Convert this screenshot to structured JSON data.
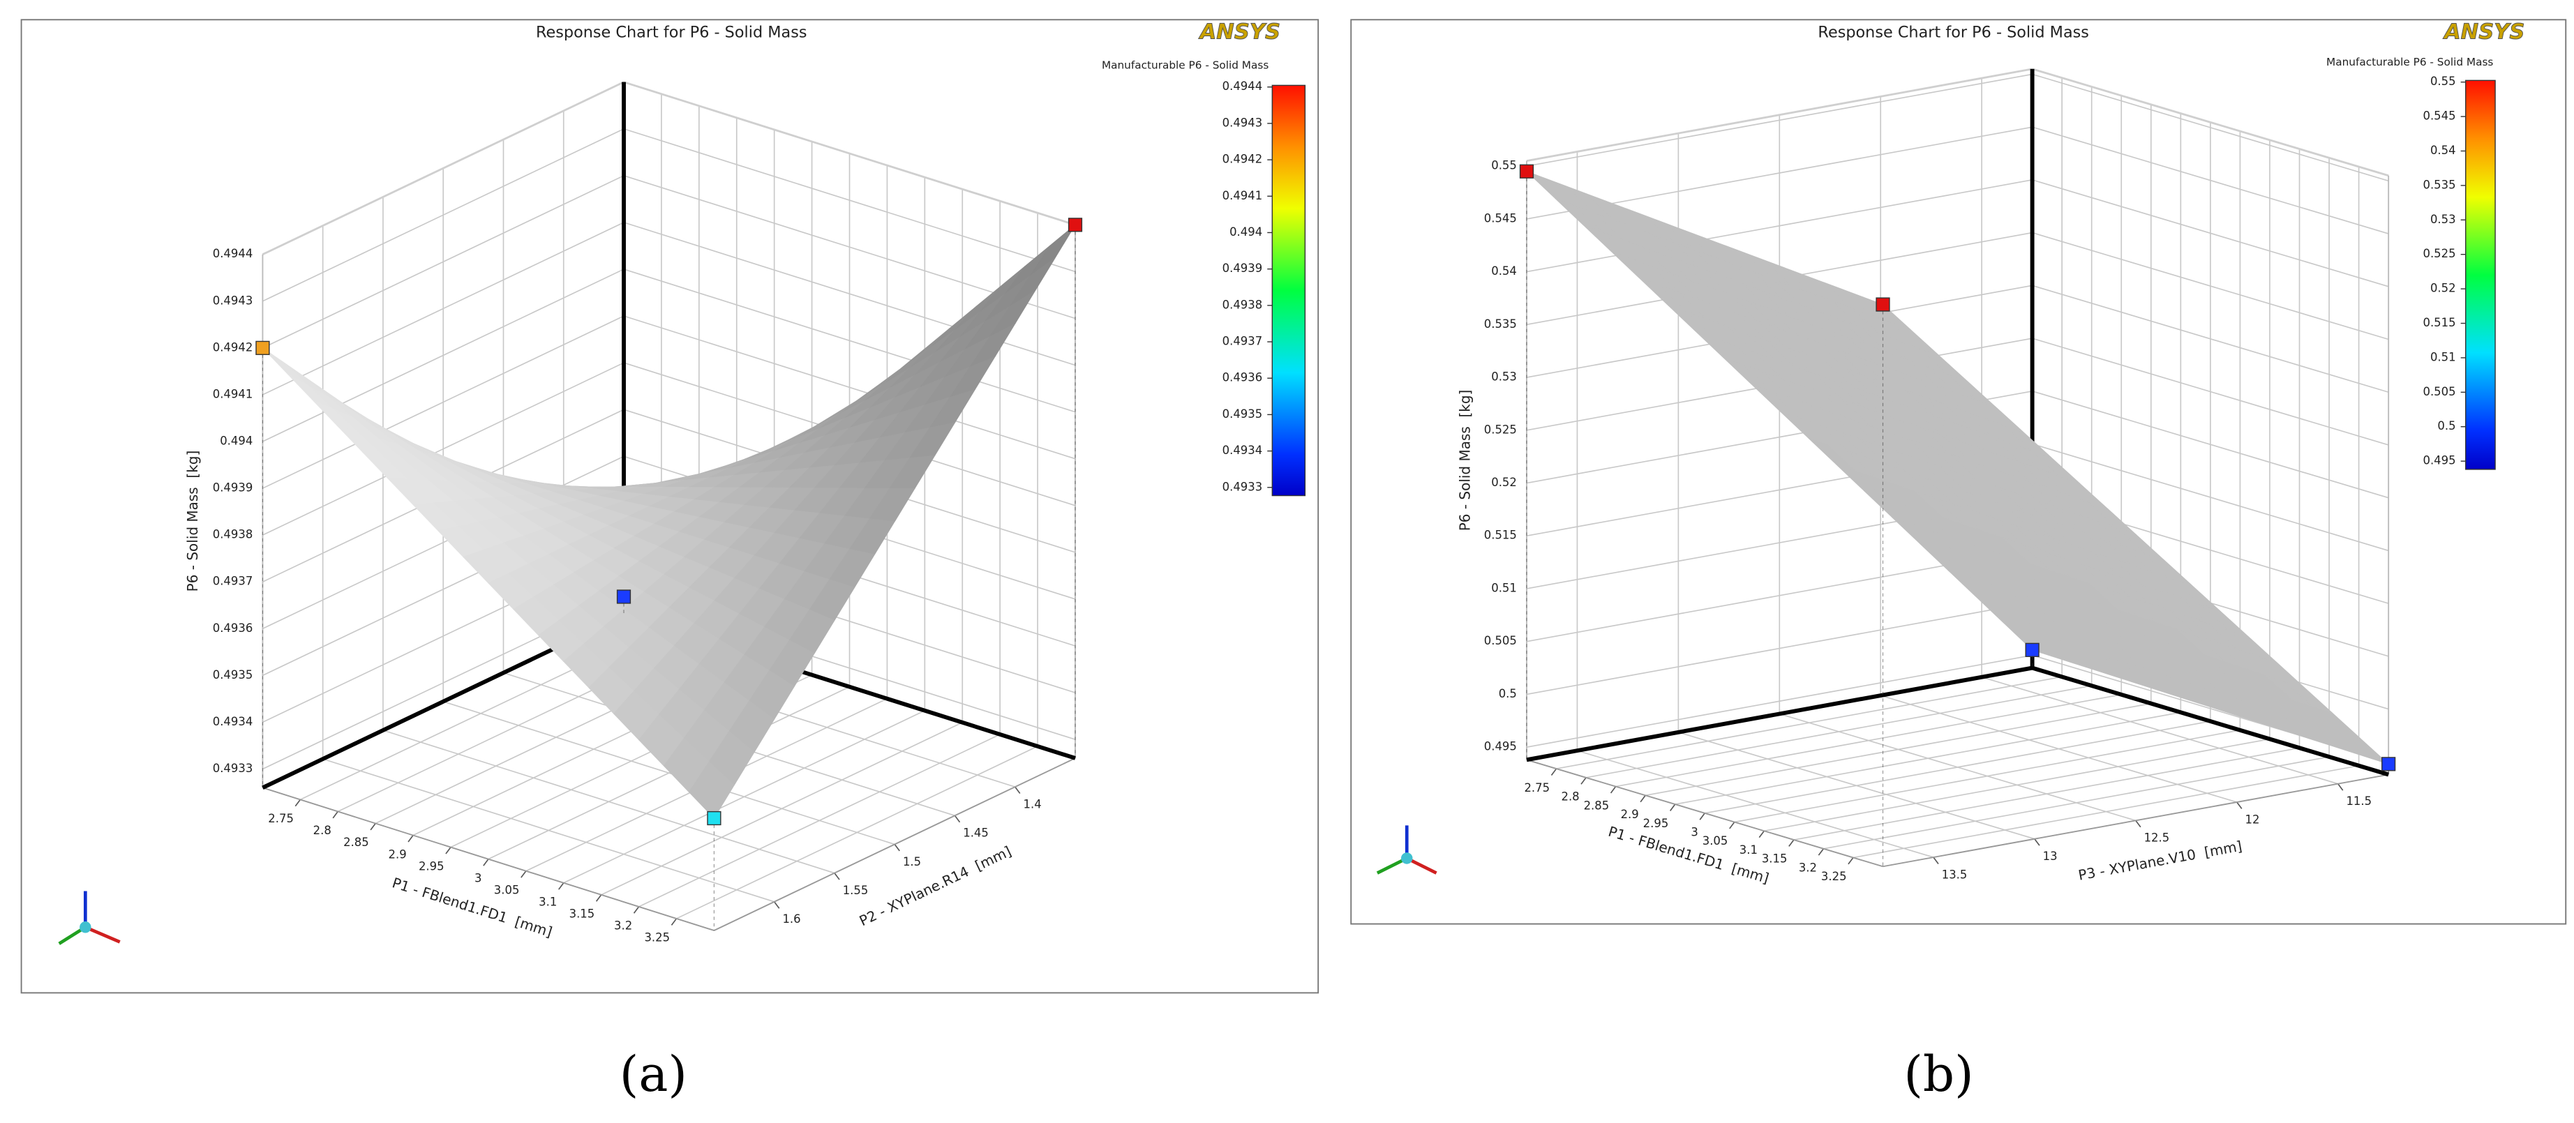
{
  "chart_data": [
    {
      "type": "surface3d",
      "title": "Response Chart for P6 - Solid Mass",
      "logo": "ANSYS",
      "panel_label": "(a)",
      "x_label": "P1 - FBlend1.FD1  [mm]",
      "y_label": "P2 - XYPlane.R14  [mm]",
      "z_label": "P6 - Solid Mass  [kg]",
      "colorbar_title": "Manufacturable P6 - Solid Mass",
      "xlim": [
        2.7,
        3.3
      ],
      "xticks": [
        2.75,
        2.8,
        2.85,
        2.9,
        2.95,
        3,
        3.05,
        3.1,
        3.15,
        3.2,
        3.25
      ],
      "ylim": [
        1.35,
        1.65
      ],
      "yticks": [
        1.4,
        1.45,
        1.5,
        1.55,
        1.6
      ],
      "zlim": [
        0.49326,
        0.4944
      ],
      "zticks": [
        0.4933,
        0.4934,
        0.4935,
        0.4936,
        0.4937,
        0.4938,
        0.4939,
        0.494,
        0.4941,
        0.4942,
        0.4943,
        0.4944
      ],
      "clim": [
        0.4933,
        0.4944
      ],
      "cticks": [
        0.4933,
        0.4934,
        0.4935,
        0.4936,
        0.4937,
        0.4938,
        0.4939,
        0.494,
        0.4941,
        0.4942,
        0.4943,
        0.4944
      ],
      "surface_color": "#bdbdbd",
      "design_points": [
        {
          "x": 2.7,
          "y": 1.35,
          "z": 0.4933,
          "color": "#1a3cff"
        },
        {
          "x": 2.7,
          "y": 1.65,
          "z": 0.4942,
          "color": "#f0a020"
        },
        {
          "x": 3.3,
          "y": 1.35,
          "z": 0.4944,
          "color": "#e01010"
        },
        {
          "x": 3.3,
          "y": 1.65,
          "z": 0.4935,
          "color": "#20e0f0"
        }
      ]
    },
    {
      "type": "surface3d",
      "title": "Response Chart for P6 - Solid Mass",
      "logo": "ANSYS",
      "panel_label": "(b)",
      "x_label": "P1 - FBlend1.FD1  [mm]",
      "y_label": "P3 - XYPlane.V10  [mm]",
      "z_label": "P6 - Solid Mass  [kg]",
      "colorbar_title": "Manufacturable P6 - Solid Mass",
      "xlim": [
        2.7,
        3.3
      ],
      "xticks": [
        2.75,
        2.8,
        2.85,
        2.9,
        2.95,
        3,
        3.05,
        3.1,
        3.15,
        3.2,
        3.25
      ],
      "ylim": [
        11.25,
        13.75
      ],
      "yticks": [
        11.5,
        12,
        12.5,
        13,
        13.5
      ],
      "zlim": [
        0.4938,
        0.5505
      ],
      "zticks": [
        0.495,
        0.5,
        0.505,
        0.51,
        0.515,
        0.52,
        0.525,
        0.53,
        0.535,
        0.54,
        0.545,
        0.55
      ],
      "clim": [
        0.495,
        0.55
      ],
      "cticks": [
        0.495,
        0.5,
        0.505,
        0.51,
        0.515,
        0.52,
        0.525,
        0.53,
        0.535,
        0.54,
        0.545,
        0.55
      ],
      "surface_color": "#a8a8a8",
      "design_points": [
        {
          "x": 2.7,
          "y": 11.25,
          "z": 0.4955,
          "color": "#1a3cff"
        },
        {
          "x": 2.7,
          "y": 13.75,
          "z": 0.5495,
          "color": "#e01010"
        },
        {
          "x": 3.3,
          "y": 11.25,
          "z": 0.4948,
          "color": "#1a3cff"
        },
        {
          "x": 3.3,
          "y": 13.75,
          "z": 0.547,
          "color": "#e01010"
        }
      ]
    }
  ]
}
